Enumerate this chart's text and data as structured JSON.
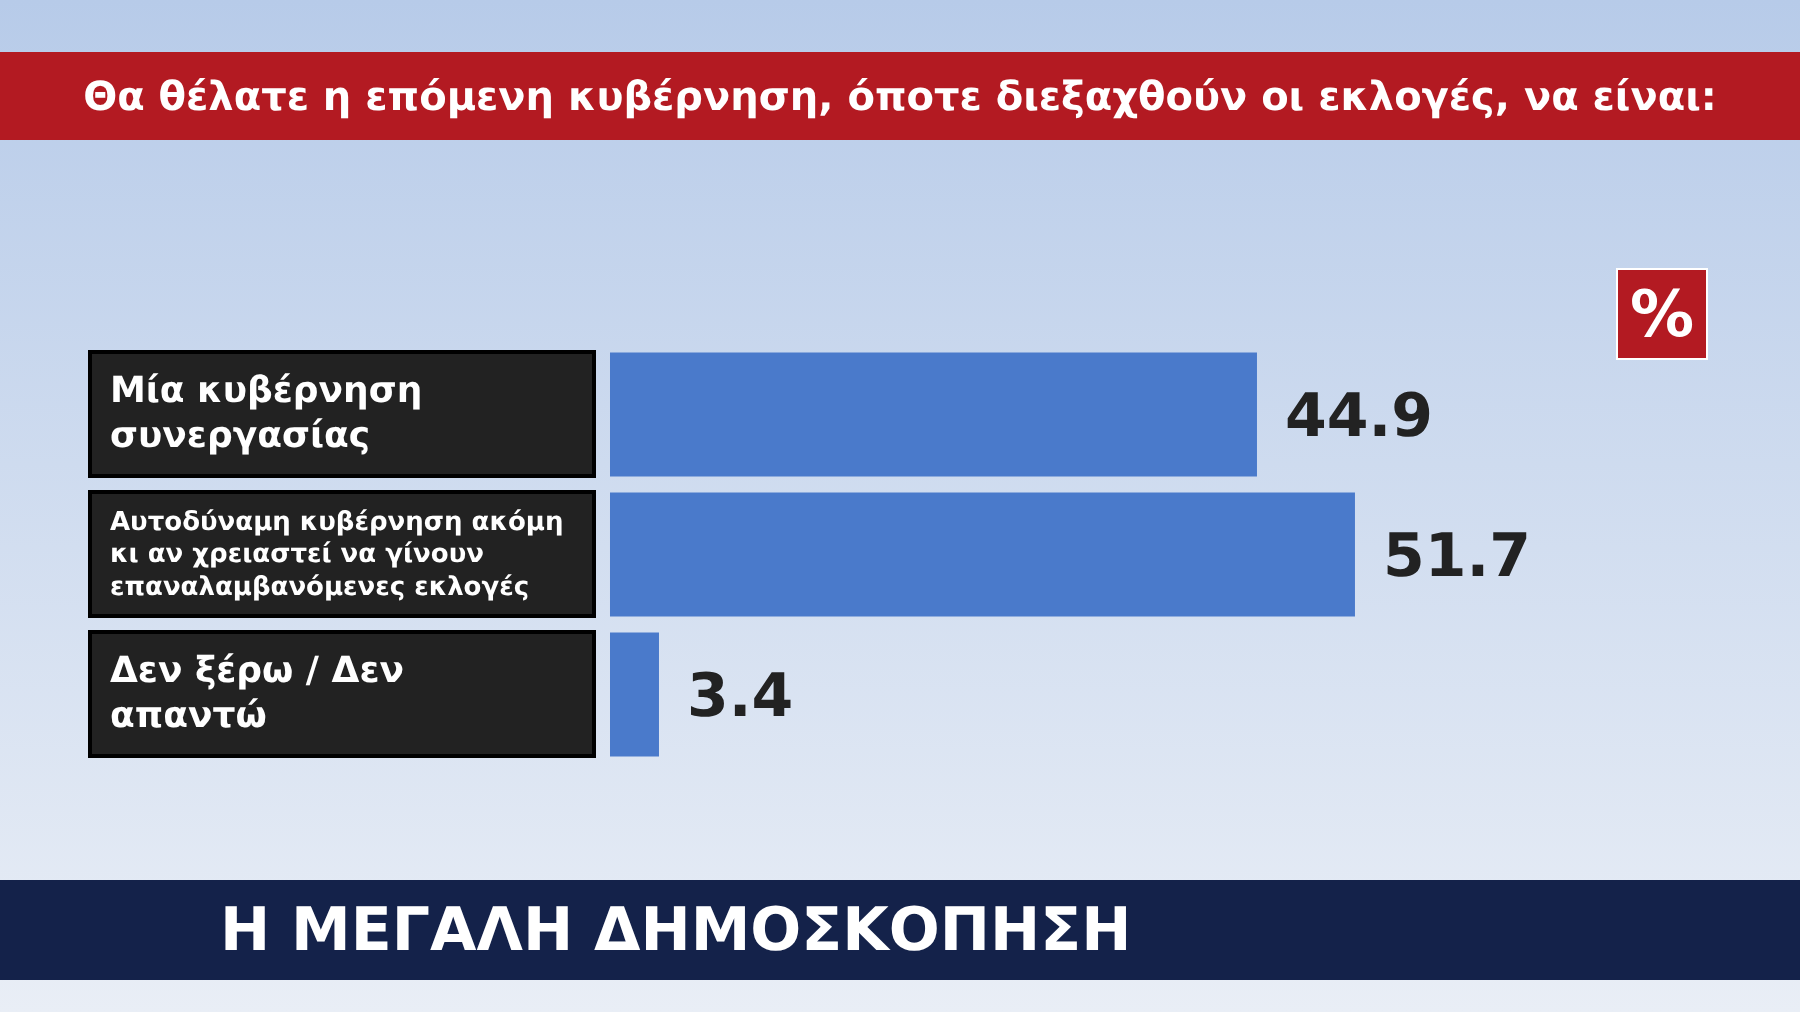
{
  "chart_data": {
    "type": "bar",
    "orientation": "horizontal",
    "title": "Θα θέλατε η επόμενη κυβέρνηση, όποτε διεξαχθούν οι εκλογές, να είναι:",
    "xlabel": "%",
    "categories": [
      "Μία κυβέρνηση συνεργασίας",
      "Αυτοδύναμη κυβέρνηση ακόμη κι αν χρειαστεί να γίνουν επαναλαμβανόμενες εκλογές",
      "Δεν ξέρω / Δεν απαντώ"
    ],
    "values": [
      44.9,
      51.7,
      3.4
    ],
    "color": "#4a7acb",
    "data_labels": true,
    "grid": false,
    "legend": false,
    "annotations": [
      "Η ΜΕΓΑΛΗ ΔΗΜΟΣΚΟΠΗΣΗ"
    ]
  }
}
